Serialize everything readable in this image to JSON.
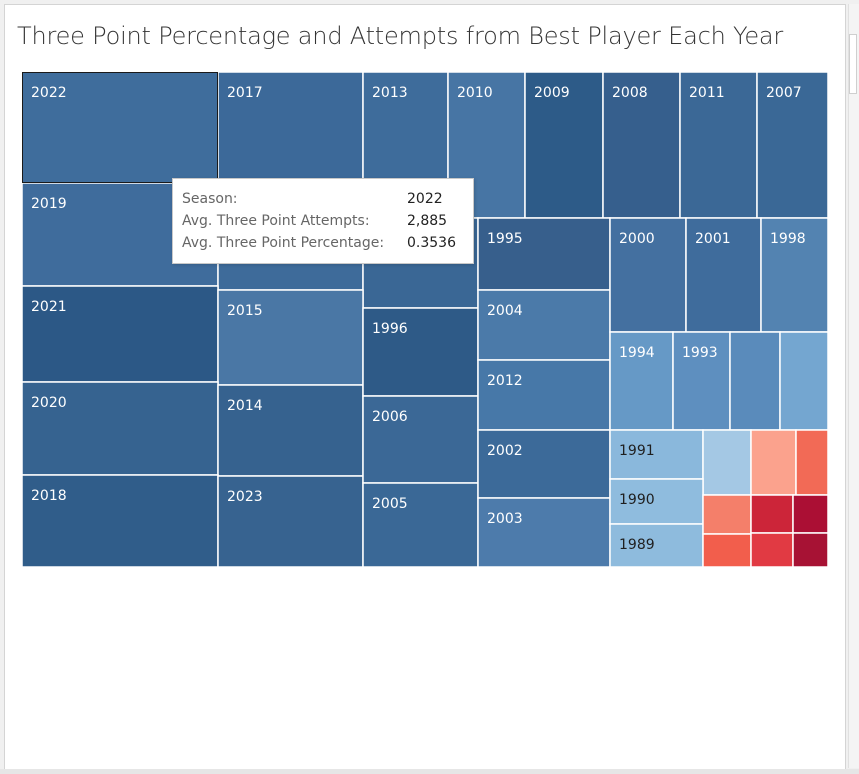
{
  "title": "Three Point Percentage and Attempts from Best Player Each Year",
  "tooltip": {
    "rows": [
      {
        "label": "Season:",
        "value": "2022"
      },
      {
        "label": "Avg. Three Point Attempts:",
        "value": "2,885"
      },
      {
        "label": "Avg. Three Point Percentage:",
        "value": "0.3536"
      }
    ]
  },
  "chart_data": {
    "type": "treemap",
    "title": "Three Point Percentage and Attempts from Best Player Each Year",
    "size_measure": "Avg. Three Point Attempts",
    "color_measure": "Avg. Three Point Percentage",
    "color_scale": {
      "low": "#a6c8e3",
      "high": "#2b5886",
      "warm": [
        "#fca48f",
        "#f46d5a",
        "#d62f3a",
        "#a81035"
      ]
    },
    "selected": "2022",
    "cells": [
      {
        "label": "2022",
        "color": "#3f6d9c",
        "selected": true
      },
      {
        "label": "2017",
        "color": "#3c6999"
      },
      {
        "label": "2013",
        "color": "#3e6c9b"
      },
      {
        "label": "2010",
        "color": "#4775a4"
      },
      {
        "label": "2009",
        "color": "#2d5b88"
      },
      {
        "label": "2008",
        "color": "#365f8d"
      },
      {
        "label": "2011",
        "color": "#3b6896"
      },
      {
        "label": "2007",
        "color": "#3a6896"
      },
      {
        "label": "2019",
        "color": "#3f6c9c"
      },
      {
        "label": "",
        "color": "#3e6b9a"
      },
      {
        "label": "",
        "color": "#3a6795"
      },
      {
        "label": "2021",
        "color": "#2c5886"
      },
      {
        "label": "2015",
        "color": "#4a77a5"
      },
      {
        "label": "2020",
        "color": "#366390"
      },
      {
        "label": "2014",
        "color": "#36628f"
      },
      {
        "label": "2018",
        "color": "#305d8a"
      },
      {
        "label": "2023",
        "color": "#376390"
      },
      {
        "label": "1996",
        "color": "#2e5a87"
      },
      {
        "label": "2006",
        "color": "#3b6896"
      },
      {
        "label": "2005",
        "color": "#3a6896"
      },
      {
        "label": "1995",
        "color": "#375f8c"
      },
      {
        "label": "2004",
        "color": "#4b7aa9"
      },
      {
        "label": "2012",
        "color": "#4778a8"
      },
      {
        "label": "2002",
        "color": "#3c6a99"
      },
      {
        "label": "2003",
        "color": "#4d7bab"
      },
      {
        "label": "2000",
        "color": "#4470a0"
      },
      {
        "label": "2001",
        "color": "#3f6c9c"
      },
      {
        "label": "1998",
        "color": "#5383b1"
      },
      {
        "label": "1994",
        "color": "#6699c6"
      },
      {
        "label": "1993",
        "color": "#5e8fbf"
      },
      {
        "label": "",
        "color": "#5a8bbb"
      },
      {
        "label": "",
        "color": "#74a6d0"
      },
      {
        "label": "1991",
        "color": "#8ab8dc"
      },
      {
        "label": "",
        "color": "#a4c8e4"
      },
      {
        "label": "",
        "color": "#fba28d"
      },
      {
        "label": "",
        "color": "#f26a56"
      },
      {
        "label": "1990",
        "color": "#8fbcde"
      },
      {
        "label": "1989",
        "color": "#8ebbdd"
      },
      {
        "label": "",
        "color": "#f47f6a"
      },
      {
        "label": "",
        "color": "#cc2539"
      },
      {
        "label": "",
        "color": "#ab0f34"
      },
      {
        "label": "",
        "color": "#f25e4c"
      },
      {
        "label": "",
        "color": "#e13a43"
      },
      {
        "label": "",
        "color": "#a71234"
      }
    ]
  }
}
